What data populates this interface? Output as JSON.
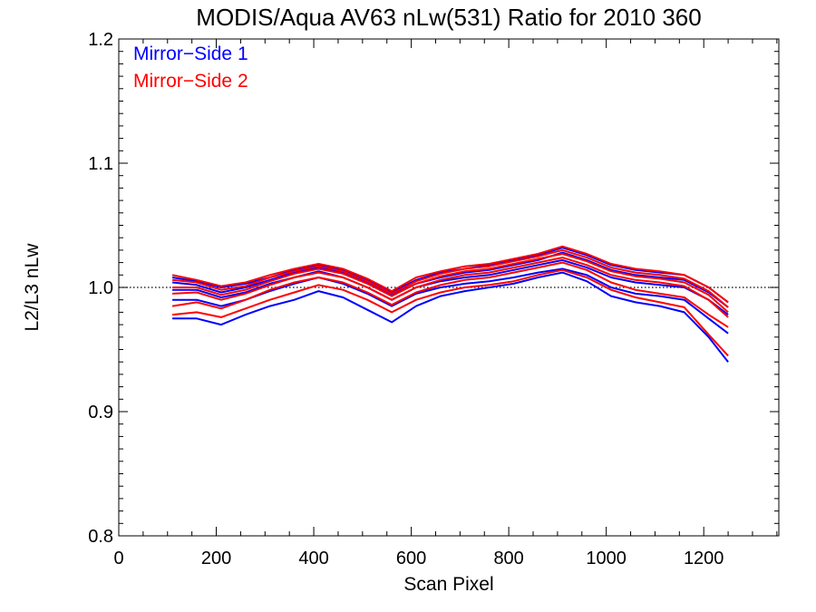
{
  "chart_data": {
    "type": "line",
    "title": "MODIS/Aqua AV63 nLw(531) Ratio for 2010 360",
    "xlabel": "Scan Pixel",
    "ylabel": "L2/L3 nLw",
    "xlim": [
      0,
      1354
    ],
    "ylim": [
      0.8,
      1.2
    ],
    "x_ticks": [
      0,
      200,
      400,
      600,
      800,
      1000,
      1200
    ],
    "x_tick_labels": [
      "0",
      "200",
      "400",
      "600",
      "800",
      "1000",
      "1200"
    ],
    "y_ticks": [
      0.8,
      0.9,
      1.0,
      1.1,
      1.2
    ],
    "y_tick_labels": [
      "0.8",
      "0.9",
      "1.0",
      "1.1",
      "1.2"
    ],
    "reference_line": 1.0,
    "legend_position": "top-left",
    "legend": [
      {
        "label": "Mirror−Side 1",
        "color": "#0000ff"
      },
      {
        "label": "Mirror−Side 2",
        "color": "#ff0000"
      }
    ],
    "x": [
      110,
      160,
      210,
      260,
      310,
      360,
      410,
      460,
      510,
      560,
      610,
      660,
      710,
      760,
      810,
      860,
      910,
      960,
      1010,
      1060,
      1110,
      1160,
      1210,
      1250
    ],
    "series": [
      {
        "group": "Mirror−Side 1",
        "color": "#0000ff",
        "values": [
          0.975,
          0.975,
          0.97,
          0.978,
          0.985,
          0.99,
          0.997,
          0.992,
          0.982,
          0.972,
          0.985,
          0.993,
          0.997,
          1.0,
          1.003,
          1.008,
          1.012,
          1.005,
          0.993,
          0.988,
          0.985,
          0.98,
          0.96,
          0.94
        ]
      },
      {
        "group": "Mirror−Side 1",
        "color": "#0000ff",
        "values": [
          0.99,
          0.99,
          0.985,
          0.99,
          0.997,
          1.003,
          1.008,
          1.003,
          0.995,
          0.985,
          0.995,
          1.0,
          1.003,
          1.005,
          1.008,
          1.012,
          1.015,
          1.01,
          1.0,
          0.995,
          0.993,
          0.99,
          0.975,
          0.963
        ]
      },
      {
        "group": "Mirror−Side 1",
        "color": "#0000ff",
        "values": [
          0.998,
          0.998,
          0.992,
          0.996,
          1.003,
          1.008,
          1.013,
          1.008,
          1.0,
          0.99,
          1.0,
          1.005,
          1.008,
          1.01,
          1.014,
          1.018,
          1.022,
          1.016,
          1.008,
          1.004,
          1.002,
          1.0,
          0.99,
          0.978
        ]
      },
      {
        "group": "Mirror−Side 1",
        "color": "#0000ff",
        "values": [
          1.004,
          1.002,
          0.996,
          1.0,
          1.006,
          1.012,
          1.016,
          1.012,
          1.004,
          0.994,
          1.003,
          1.008,
          1.012,
          1.014,
          1.018,
          1.022,
          1.028,
          1.022,
          1.014,
          1.01,
          1.008,
          1.006,
          0.996,
          0.984
        ]
      },
      {
        "group": "Mirror−Side 1",
        "color": "#0000ff",
        "values": [
          1.008,
          1.005,
          1.0,
          1.003,
          1.008,
          1.014,
          1.018,
          1.014,
          1.006,
          0.996,
          1.006,
          1.012,
          1.015,
          1.018,
          1.022,
          1.026,
          1.032,
          1.026,
          1.018,
          1.014,
          1.012,
          1.01,
          1.0,
          0.988
        ]
      },
      {
        "group": "Mirror−Side 2",
        "color": "#ff0000",
        "values": [
          0.978,
          0.98,
          0.976,
          0.983,
          0.99,
          0.996,
          1.002,
          0.998,
          0.99,
          0.98,
          0.99,
          0.996,
          1.0,
          1.002,
          1.005,
          1.01,
          1.014,
          1.008,
          0.998,
          0.992,
          0.988,
          0.984,
          0.962,
          0.945
        ]
      },
      {
        "group": "Mirror−Side 2",
        "color": "#ff0000",
        "values": [
          0.985,
          0.988,
          0.983,
          0.99,
          0.998,
          1.004,
          1.008,
          1.004,
          0.996,
          0.986,
          0.996,
          1.002,
          1.006,
          1.008,
          1.012,
          1.016,
          1.02,
          1.014,
          1.004,
          0.998,
          0.995,
          0.992,
          0.978,
          0.968
        ]
      },
      {
        "group": "Mirror−Side 2",
        "color": "#ff0000",
        "values": [
          0.995,
          0.996,
          0.99,
          0.995,
          1.002,
          1.008,
          1.012,
          1.008,
          1.0,
          0.99,
          1.0,
          1.006,
          1.01,
          1.012,
          1.016,
          1.02,
          1.024,
          1.018,
          1.01,
          1.006,
          1.004,
          1.001,
          0.99,
          0.976
        ]
      },
      {
        "group": "Mirror−Side 2",
        "color": "#ff0000",
        "values": [
          1.0,
          1.0,
          0.994,
          0.998,
          1.005,
          1.011,
          1.015,
          1.011,
          1.003,
          0.993,
          1.003,
          1.009,
          1.013,
          1.015,
          1.019,
          1.023,
          1.027,
          1.021,
          1.013,
          1.009,
          1.007,
          1.004,
          0.994,
          0.98
        ]
      },
      {
        "group": "Mirror−Side 2",
        "color": "#ff0000",
        "values": [
          1.006,
          1.004,
          0.998,
          1.001,
          1.008,
          1.013,
          1.017,
          1.013,
          1.005,
          0.995,
          1.005,
          1.011,
          1.015,
          1.017,
          1.021,
          1.025,
          1.03,
          1.024,
          1.016,
          1.012,
          1.01,
          1.007,
          0.997,
          0.984
        ]
      },
      {
        "group": "Mirror−Side 2",
        "color": "#ff0000",
        "values": [
          1.01,
          1.006,
          1.001,
          1.004,
          1.01,
          1.015,
          1.019,
          1.015,
          1.007,
          0.997,
          1.008,
          1.013,
          1.017,
          1.019,
          1.023,
          1.027,
          1.033,
          1.027,
          1.019,
          1.015,
          1.013,
          1.01,
          1.0,
          0.988
        ]
      }
    ]
  }
}
